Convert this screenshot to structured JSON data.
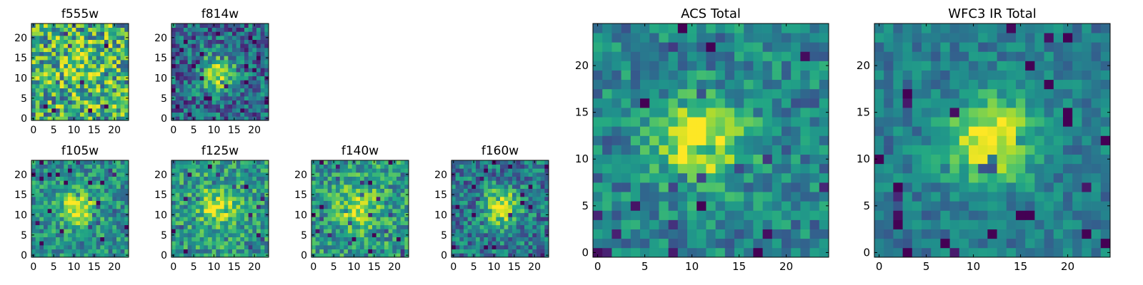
{
  "figure": {
    "description": ""
  },
  "chart_data": [
    {
      "type": "heatmap",
      "title": "f555w",
      "xlabel": "",
      "ylabel": "",
      "xticks": [
        0,
        5,
        10,
        15,
        20
      ],
      "yticks": [
        0,
        5,
        10,
        15,
        20
      ],
      "grid_size": [
        24,
        24
      ],
      "xlim": [
        -0.5,
        23.5
      ],
      "ylim": [
        -0.5,
        23.5
      ],
      "colormap": "viridis",
      "peak": [
        12,
        12
      ],
      "peak_strength": 0.25,
      "noise": 0.75,
      "base": 0.62,
      "seed": 555
    },
    {
      "type": "heatmap",
      "title": "f814w",
      "xlabel": "",
      "ylabel": "",
      "xticks": [
        0,
        5,
        10,
        15,
        20
      ],
      "yticks": [
        0,
        5,
        10,
        15,
        20
      ],
      "grid_size": [
        24,
        24
      ],
      "xlim": [
        -0.5,
        23.5
      ],
      "ylim": [
        -0.5,
        23.5
      ],
      "colormap": "viridis",
      "peak": [
        11,
        11
      ],
      "peak_strength": 0.55,
      "noise": 0.55,
      "base": 0.35,
      "seed": 814
    },
    {
      "type": "heatmap",
      "title": "f105w",
      "xlabel": "",
      "ylabel": "",
      "xticks": [
        0,
        5,
        10,
        15,
        20
      ],
      "yticks": [
        0,
        5,
        10,
        15,
        20
      ],
      "grid_size": [
        24,
        24
      ],
      "xlim": [
        -0.5,
        23.5
      ],
      "ylim": [
        -0.5,
        23.5
      ],
      "colormap": "viridis",
      "peak": [
        11,
        12
      ],
      "peak_strength": 0.45,
      "noise": 0.45,
      "base": 0.5,
      "seed": 105
    },
    {
      "type": "heatmap",
      "title": "f125w",
      "xlabel": "",
      "ylabel": "",
      "xticks": [
        0,
        5,
        10,
        15,
        20
      ],
      "yticks": [
        0,
        5,
        10,
        15,
        20
      ],
      "grid_size": [
        24,
        24
      ],
      "xlim": [
        -0.5,
        23.5
      ],
      "ylim": [
        -0.5,
        23.5
      ],
      "colormap": "viridis",
      "peak": [
        11,
        12
      ],
      "peak_strength": 0.4,
      "noise": 0.5,
      "base": 0.55,
      "seed": 125
    },
    {
      "type": "heatmap",
      "title": "f140w",
      "xlabel": "",
      "ylabel": "",
      "xticks": [
        0,
        5,
        10,
        15,
        20
      ],
      "yticks": [
        0,
        5,
        10,
        15,
        20
      ],
      "grid_size": [
        24,
        24
      ],
      "xlim": [
        -0.5,
        23.5
      ],
      "ylim": [
        -0.5,
        23.5
      ],
      "colormap": "viridis",
      "peak": [
        11,
        12
      ],
      "peak_strength": 0.4,
      "noise": 0.5,
      "base": 0.55,
      "seed": 140
    },
    {
      "type": "heatmap",
      "title": "f160w",
      "xlabel": "",
      "ylabel": "",
      "xticks": [
        0,
        5,
        10,
        15,
        20
      ],
      "yticks": [
        0,
        5,
        10,
        15,
        20
      ],
      "grid_size": [
        24,
        24
      ],
      "xlim": [
        -0.5,
        23.5
      ],
      "ylim": [
        -0.5,
        23.5
      ],
      "colormap": "viridis",
      "peak": [
        12,
        12
      ],
      "peak_strength": 0.55,
      "noise": 0.5,
      "base": 0.4,
      "seed": 160
    },
    {
      "type": "heatmap",
      "title": "ACS Total",
      "xlabel": "",
      "ylabel": "",
      "xticks": [
        0,
        5,
        10,
        15,
        20
      ],
      "yticks": [
        0,
        5,
        10,
        15,
        20
      ],
      "grid_size": [
        25,
        25
      ],
      "xlim": [
        -0.5,
        24.5
      ],
      "ylim": [
        -0.5,
        24.5
      ],
      "colormap": "viridis",
      "peak": [
        11,
        12
      ],
      "peak_strength": 0.55,
      "noise": 0.4,
      "base": 0.45,
      "seed": 901
    },
    {
      "type": "heatmap",
      "title": "WFC3 IR Total",
      "xlabel": "",
      "ylabel": "",
      "xticks": [
        0,
        5,
        10,
        15,
        20
      ],
      "yticks": [
        0,
        5,
        10,
        15,
        20
      ],
      "grid_size": [
        25,
        25
      ],
      "xlim": [
        -0.5,
        24.5
      ],
      "ylim": [
        -0.5,
        24.5
      ],
      "colormap": "viridis",
      "peak": [
        12,
        12
      ],
      "peak_strength": 0.6,
      "noise": 0.3,
      "base": 0.42,
      "seed": 902
    }
  ]
}
